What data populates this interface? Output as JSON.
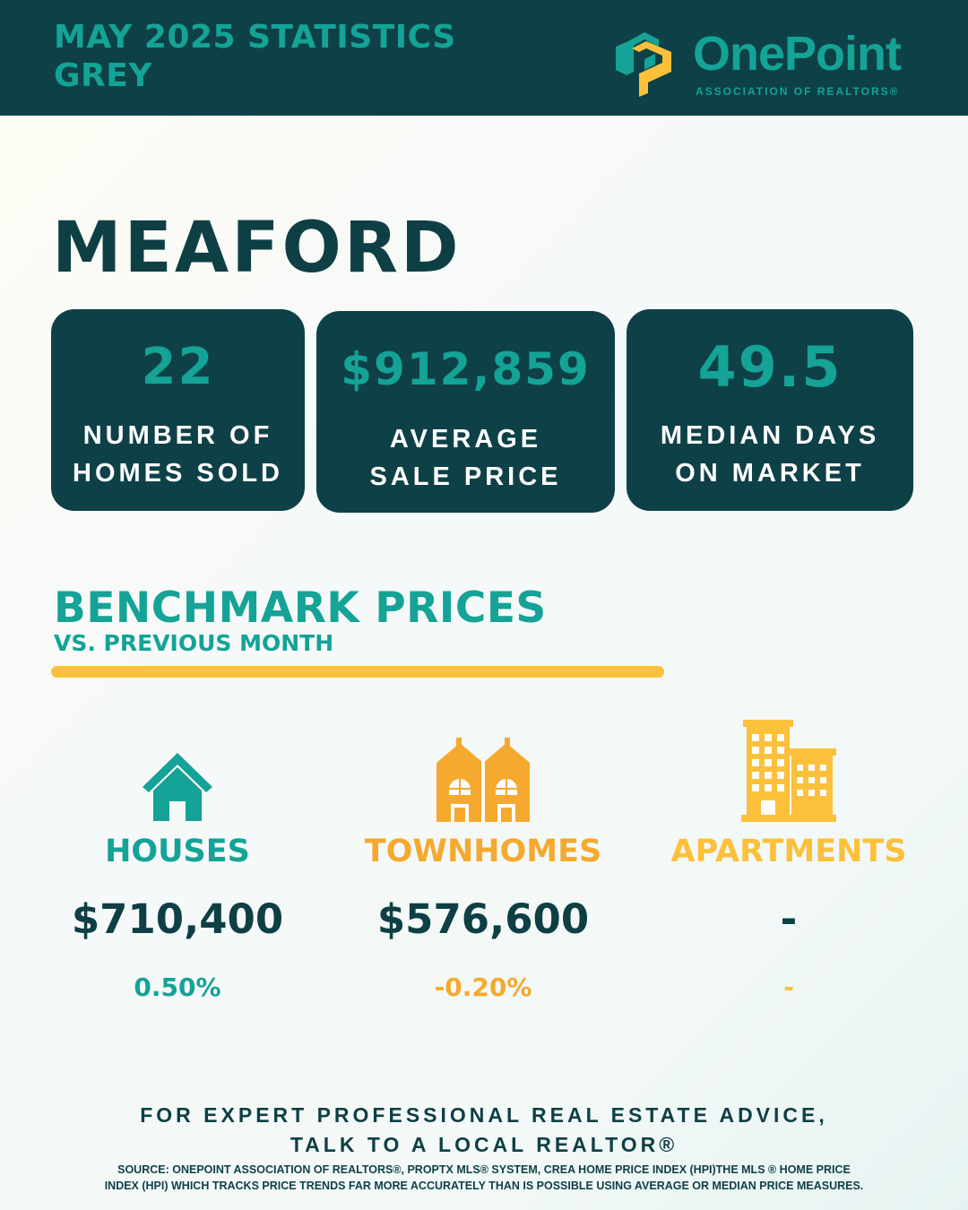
{
  "header": {
    "title_line1": "MAY 2025 STATISTICS",
    "title_line2": "GREY"
  },
  "logo": {
    "name": "OnePoint",
    "subtitle": "ASSOCIATION OF REALTORS®",
    "icon": "onepoint-logo-icon"
  },
  "city": "MEAFORD",
  "stats": [
    {
      "value": "22",
      "label_line1": "NUMBER OF",
      "label_line2": "HOMES SOLD"
    },
    {
      "value": "$912,859",
      "label_line1": "AVERAGE",
      "label_line2": "SALE PRICE"
    },
    {
      "value": "49.5",
      "label_line1": "MEDIAN DAYS",
      "label_line2": "ON MARKET"
    }
  ],
  "benchmark": {
    "title": "BENCHMARK PRICES",
    "subtitle": "VS. PREVIOUS MONTH"
  },
  "property_types": [
    {
      "icon": "house-icon",
      "name": "HOUSES",
      "price": "$710,400",
      "change": "0.50%",
      "color": "#14a396"
    },
    {
      "icon": "townhomes-icon",
      "name": "TOWNHOMES",
      "price": "$576,600",
      "change": "-0.20%",
      "color": "#f5a92e"
    },
    {
      "icon": "apartments-icon",
      "name": "APARTMENTS",
      "price": "-",
      "change": "-",
      "color": "#fcc03a"
    }
  ],
  "footer": {
    "cta_line1": "FOR EXPERT PROFESSIONAL REAL ESTATE ADVICE,",
    "cta_line2": "TALK TO A LOCAL REALTOR®",
    "source_line1": "SOURCE: ONEPOINT ASSOCIATION OF REALTORS®, PROPTX MLS® SYSTEM, CREA HOME PRICE INDEX (HPI)THE MLS ® HOME PRICE",
    "source_line2": "INDEX (HPI) WHICH TRACKS PRICE TRENDS FAR MORE ACCURATELY THAN IS POSSIBLE USING AVERAGE OR MEDIAN PRICE MEASURES."
  },
  "colors": {
    "dark_teal": "#0e4147",
    "teal": "#14a396",
    "orange": "#f5a92e",
    "yellow": "#fcc03a"
  }
}
